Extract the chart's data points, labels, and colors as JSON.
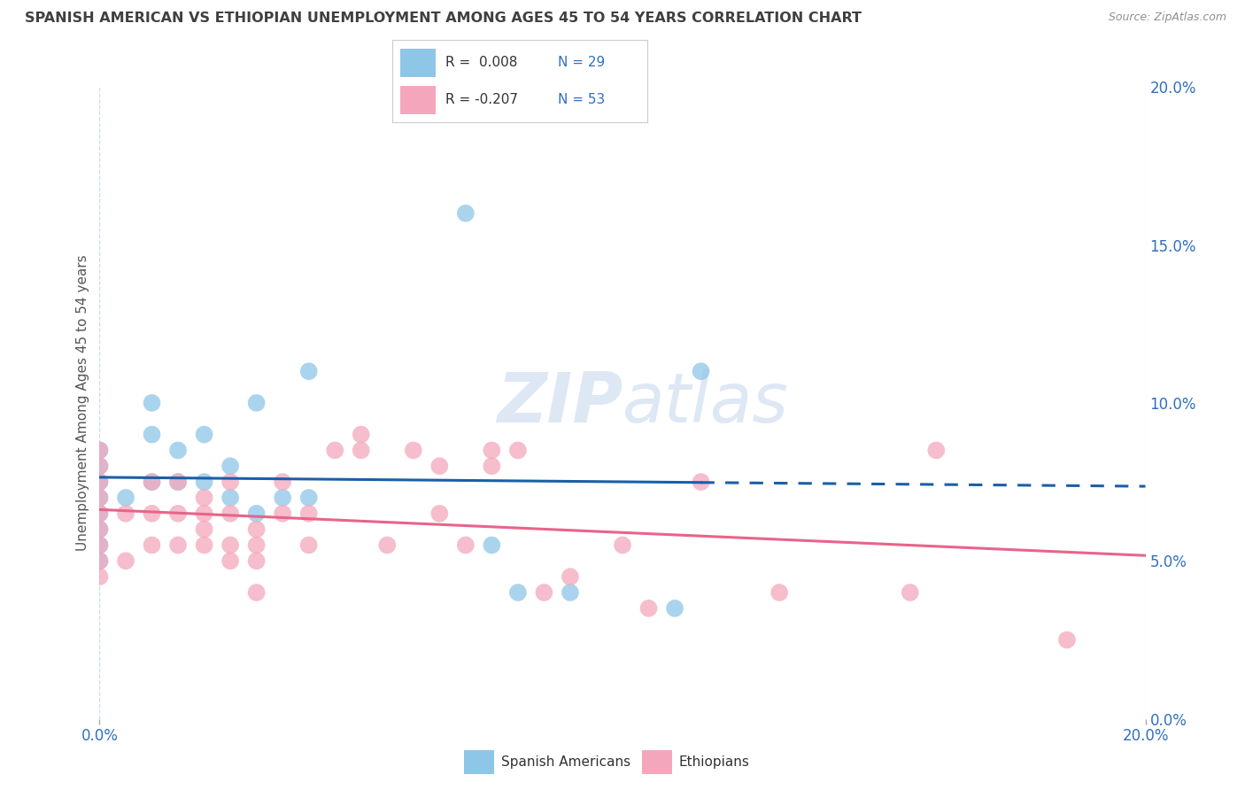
{
  "title": "SPANISH AMERICAN VS ETHIOPIAN UNEMPLOYMENT AMONG AGES 45 TO 54 YEARS CORRELATION CHART",
  "source": "Source: ZipAtlas.com",
  "ylabel": "Unemployment Among Ages 45 to 54 years",
  "legend_bottom1": "Spanish Americans",
  "legend_bottom2": "Ethiopians",
  "blue_color": "#8ec6e8",
  "pink_color": "#f4a7bc",
  "blue_line_color": "#1a5fa8",
  "pink_line_color": "#e8648a",
  "title_color": "#404040",
  "source_color": "#909090",
  "axis_label_color": "#3070c0",
  "grid_color": "#c8d8ec",
  "watermark_color": "#c8d8ee",
  "xlim": [
    0.0,
    0.2
  ],
  "ylim": [
    0.0,
    0.2
  ],
  "blue_R": 0.008,
  "blue_N": 29,
  "pink_R": -0.207,
  "pink_N": 53,
  "spanish_x": [
    0.0,
    0.0,
    0.0,
    0.0,
    0.0,
    0.0,
    0.0,
    0.0,
    0.005,
    0.01,
    0.01,
    0.01,
    0.015,
    0.015,
    0.02,
    0.02,
    0.025,
    0.025,
    0.03,
    0.03,
    0.035,
    0.04,
    0.04,
    0.07,
    0.075,
    0.08,
    0.09,
    0.11,
    0.115
  ],
  "spanish_y": [
    0.05,
    0.055,
    0.06,
    0.065,
    0.07,
    0.075,
    0.08,
    0.085,
    0.07,
    0.075,
    0.09,
    0.1,
    0.075,
    0.085,
    0.075,
    0.09,
    0.07,
    0.08,
    0.065,
    0.1,
    0.07,
    0.07,
    0.11,
    0.16,
    0.055,
    0.04,
    0.04,
    0.035,
    0.11
  ],
  "ethiopian_x": [
    0.0,
    0.0,
    0.0,
    0.0,
    0.0,
    0.0,
    0.0,
    0.0,
    0.0,
    0.005,
    0.005,
    0.01,
    0.01,
    0.01,
    0.015,
    0.015,
    0.015,
    0.02,
    0.02,
    0.02,
    0.02,
    0.025,
    0.025,
    0.025,
    0.025,
    0.03,
    0.03,
    0.03,
    0.03,
    0.035,
    0.035,
    0.04,
    0.04,
    0.045,
    0.05,
    0.05,
    0.055,
    0.06,
    0.065,
    0.065,
    0.07,
    0.075,
    0.075,
    0.08,
    0.085,
    0.09,
    0.1,
    0.105,
    0.115,
    0.13,
    0.155,
    0.16,
    0.185
  ],
  "ethiopian_y": [
    0.045,
    0.05,
    0.055,
    0.06,
    0.065,
    0.07,
    0.075,
    0.08,
    0.085,
    0.05,
    0.065,
    0.055,
    0.065,
    0.075,
    0.055,
    0.065,
    0.075,
    0.055,
    0.06,
    0.065,
    0.07,
    0.05,
    0.055,
    0.065,
    0.075,
    0.04,
    0.05,
    0.055,
    0.06,
    0.065,
    0.075,
    0.055,
    0.065,
    0.085,
    0.085,
    0.09,
    0.055,
    0.085,
    0.065,
    0.08,
    0.055,
    0.08,
    0.085,
    0.085,
    0.04,
    0.045,
    0.055,
    0.035,
    0.075,
    0.04,
    0.04,
    0.085,
    0.025
  ]
}
